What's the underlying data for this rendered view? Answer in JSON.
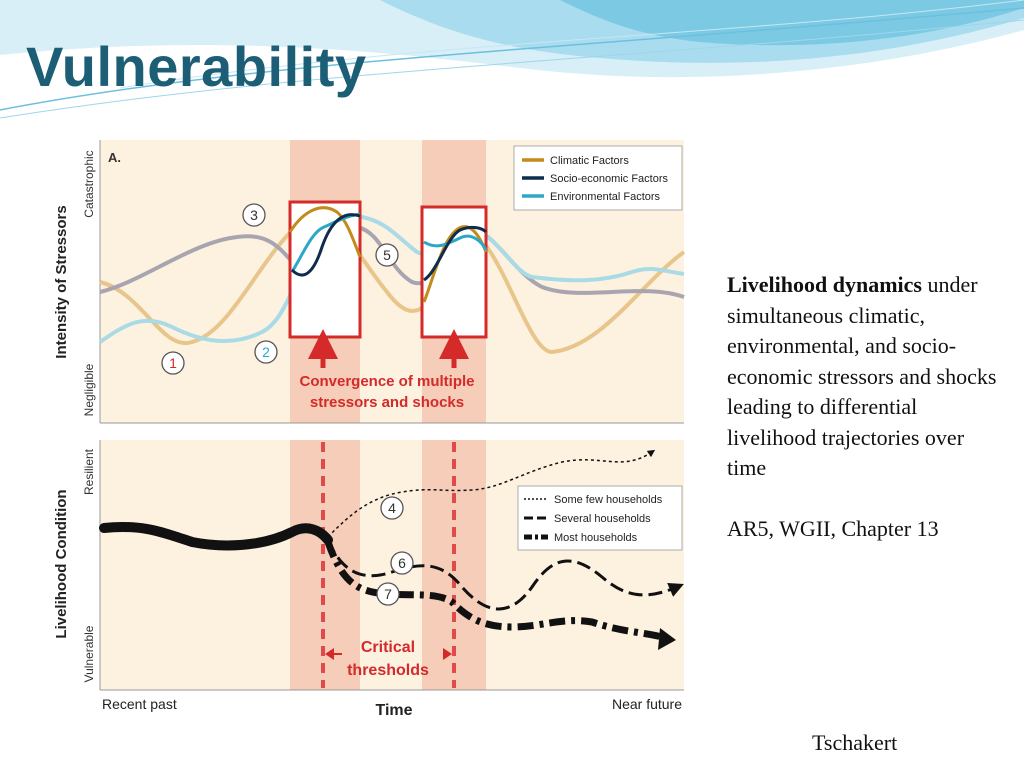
{
  "slide": {
    "title": "Vulnerability",
    "author": "Tschakert",
    "colors": {
      "title": "#1b5e75",
      "wave_light": "#bfe6f2",
      "wave_mid": "#7cc9e4"
    }
  },
  "caption": {
    "lead": "Livelihood dynamics",
    "body": "under simultaneous climatic, environmental, and socio-economic stressors and shocks leading to differential livelihood trajectories over time",
    "source": "AR5, WGII, Chapter 13"
  },
  "figure": {
    "panel_label": "A.",
    "top": {
      "y_title": "Intensity of Stressors",
      "y_high": "Catastrophic",
      "y_low": "Negligible",
      "legend": [
        {
          "label": "Climatic Factors",
          "color": "#c48a1a"
        },
        {
          "label": "Socio-economic Factors",
          "color": "#0f2c4c"
        },
        {
          "label": "Environmental Factors",
          "color": "#2aa7c9"
        }
      ],
      "markers": [
        "1",
        "2",
        "3",
        "5"
      ],
      "annotation_line1": "Convergence of multiple",
      "annotation_line2": "stressors and shocks"
    },
    "bottom": {
      "y_title": "Livelihood Condition",
      "y_high": "Resilient",
      "y_low": "Vulnerable",
      "legend": [
        {
          "label": "Some few households",
          "style": "dotted"
        },
        {
          "label": "Several households",
          "style": "dashed"
        },
        {
          "label": "Most households",
          "style": "dash-dot"
        }
      ],
      "markers": [
        "4",
        "6",
        "7"
      ],
      "threshold_line1": "Critical",
      "threshold_line2": "thresholds"
    },
    "x_left": "Recent past",
    "x_title": "Time",
    "x_right": "Near future",
    "colors": {
      "panel_bg": "#fdf1e0",
      "shock_band": "#f6cdb8",
      "red": "#d42a2a"
    }
  }
}
